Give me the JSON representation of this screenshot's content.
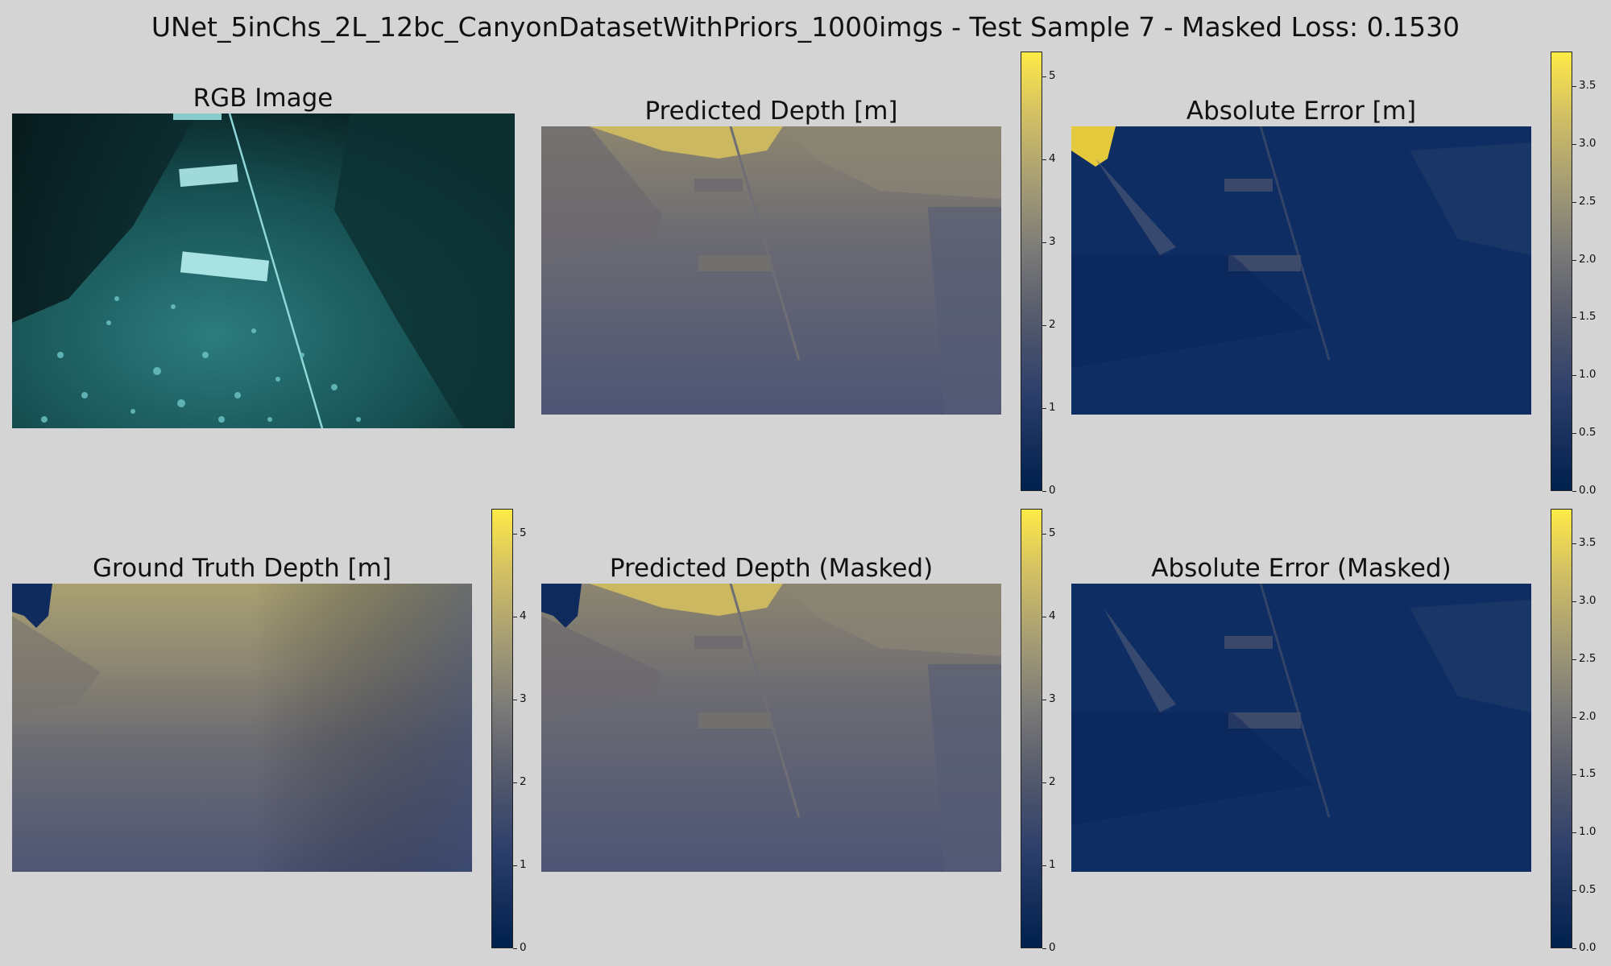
{
  "figure": {
    "suptitle": "UNet_5inChs_2L_12bc_CanyonDatasetWithPriors_1000imgs - Test Sample 7 - Masked Loss: 0.1530"
  },
  "panels": {
    "rgb": {
      "title": "RGB Image"
    },
    "pred": {
      "title": "Predicted Depth [m]"
    },
    "err": {
      "title": "Absolute Error [m]"
    },
    "gt": {
      "title": "Ground Truth Depth [m]"
    },
    "pred_masked": {
      "title": "Predicted Depth (Masked)"
    },
    "err_masked": {
      "title": "Absolute Error (Masked)"
    }
  },
  "colorbars": {
    "colormap": "cividis",
    "depth": {
      "min": 0,
      "max": 5.3,
      "ticks": [
        "0",
        "1",
        "2",
        "3",
        "4",
        "5"
      ]
    },
    "error": {
      "min": 0.0,
      "max": 3.8,
      "ticks": [
        "0.0",
        "0.5",
        "1.0",
        "1.5",
        "2.0",
        "2.5",
        "3.0",
        "3.5"
      ]
    }
  },
  "colors": {
    "background": "#d4d4d4",
    "cmap_low": "#00204d",
    "cmap_high": "#ffea46"
  }
}
